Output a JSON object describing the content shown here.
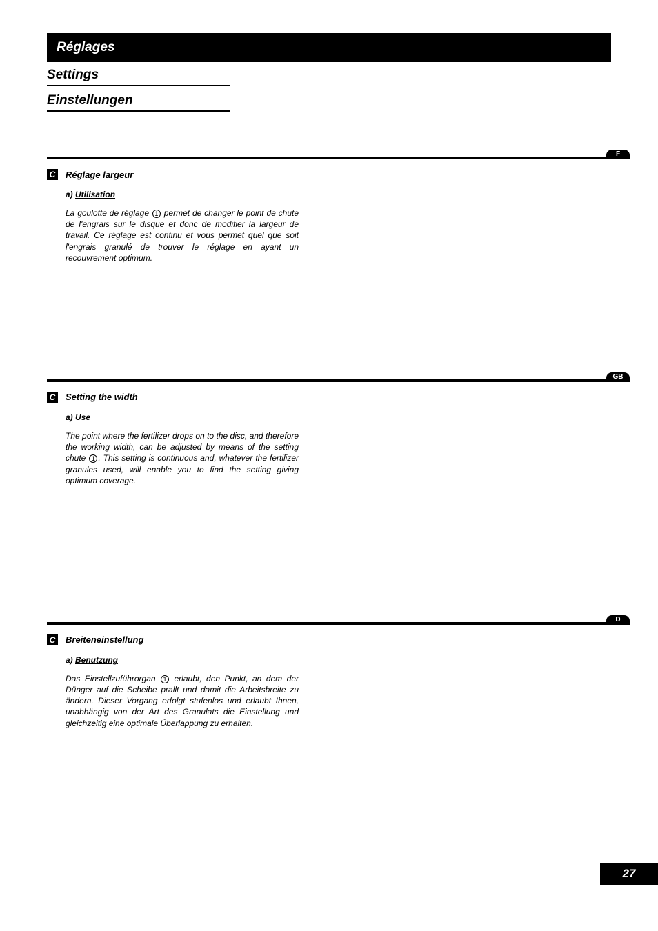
{
  "header": {
    "title_fr": "Réglages",
    "title_en": "Settings",
    "title_de": "Einstellungen"
  },
  "sections": [
    {
      "lang_code": "F",
      "letter": "C",
      "title": "Réglage largeur",
      "sub_label": "a)",
      "sub_title": "Utilisation",
      "body_pre": "La goulotte de réglage ",
      "ref_num": "1",
      "body_post": " permet de changer le point de chute de l'engrais sur le disque et donc de modifier la largeur de travail. Ce réglage est continu et vous permet quel que soit l'engrais granulé de trouver le réglage en ayant un recouvrement optimum."
    },
    {
      "lang_code": "GB",
      "letter": "C",
      "title": "Setting the width",
      "sub_label": "a)",
      "sub_title": "Use",
      "body_pre": "The point where the fertilizer drops on to the disc, and therefore the working width, can be adjusted by means of the setting chute ",
      "ref_num": "1",
      "body_post": ". This setting is continuous and, whatever the fertilizer granules used, will enable you to find the setting giving optimum coverage."
    },
    {
      "lang_code": "D",
      "letter": "C",
      "title": "Breiteneinstellung",
      "sub_label": "a)",
      "sub_title": "Benutzung",
      "body_pre": "Das Einstellzuführorgan ",
      "ref_num": "1",
      "body_post": " erlaubt, den Punkt, an dem der Dünger auf die Scheibe prallt und damit die Arbeitsbreite zu ändern. Dieser Vorgang erfolgt stufenlos und erlaubt Ihnen, unabhängig von der Art des Granulats die Einstellung und gleichzeitig eine optimale Überlappung zu erhalten."
    }
  ],
  "page_number": "27"
}
